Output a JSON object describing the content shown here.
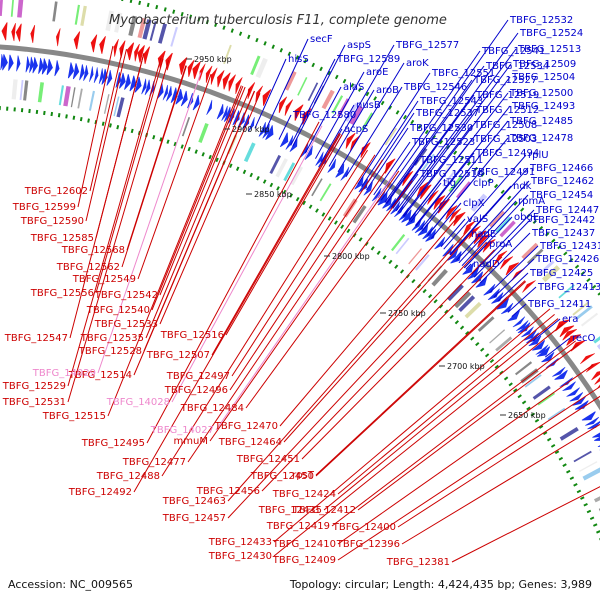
{
  "title": "Mycobacterium tuberculosis F11, complete genome",
  "footer": {
    "accession": "Accession: NC_009565",
    "summary": "Topology: circular; Length: 4,424,435 bp; Genes: 3,989"
  },
  "colors": {
    "forward_label": "#0000cc",
    "reverse_label": "#cc0000",
    "rna_label": "#ee88cc",
    "backbone": "#888888",
    "cds_forward": "#1a33ee",
    "cds_reverse": "#ee1111",
    "gc_ticks": "#118811"
  },
  "kbp_ticks": [
    {
      "label": "2950 kbp"
    },
    {
      "label": "2900 kbp"
    },
    {
      "label": "2850 kbp"
    },
    {
      "label": "2800 kbp"
    },
    {
      "label": "2750 kbp"
    },
    {
      "label": "2700 kbp"
    },
    {
      "label": "2650 kbp"
    }
  ],
  "forward_labels": [
    "secF",
    "aspS",
    "TBFG_12577",
    "hisS",
    "TBFG_12589",
    "aroK",
    "aroE",
    "TBFG_12551",
    "alaS",
    "aroB",
    "TBFG_12546",
    "TBFG_12543",
    "nusB",
    "TBFG_12580",
    "TBFG_12537",
    "acpS",
    "TBFG_12530",
    "TBFG_12523",
    "TBFG_12511",
    "TBFG_12510",
    "tig",
    "clpP",
    "clpX",
    "valS",
    "nadE",
    "nadD",
    "proA",
    "TBFG_12532",
    "TBFG_12524",
    "TBFG_12541",
    "TBFG_12513",
    "TBFG_12534",
    "TBFG_12509",
    "TBFG_12527",
    "TBFG_12504",
    "TBFG_12519",
    "TBFG_12500",
    "TBFG_12512",
    "TBFG_12493",
    "TBFG_12508",
    "TBFG_12485",
    "TBFG_12503",
    "TBFG_12478",
    "TBFG_12494",
    "rplU",
    "TBFG_12491",
    "TBFG_12466",
    "ndk",
    "TBFG_12462",
    "rpmA",
    "TBFG_12454",
    "obgE",
    "TBFG_12447",
    "TBFG_12442",
    "TBFG_12437",
    "TBFG_12431",
    "TBFG_12426",
    "TBFG_12425",
    "TBFG_12413",
    "TBFG_12411",
    "era",
    "recO"
  ],
  "reverse_labels": [
    "TBFG_12602",
    "TBFG_12599",
    "TBFG_12590",
    "TBFG_12585",
    "TBFG_12568",
    "TBFG_12562",
    "TBFG_12549",
    "TBFG_12556",
    "TBFG_12542",
    "TBFG_12540",
    "TBFG_12533",
    "TBFG_12547",
    "TBFG_12535",
    "TBFG_12516",
    "TBFG_12528",
    "TBFG_12507",
    "TBFG_12514",
    "TBFG_12529",
    "TBFG_12497",
    "TBFG_12496",
    "TBFG_12531",
    "TBFG_12515",
    "TBFG_12484",
    "TBFG_12470",
    "TBFG_12495",
    "mmuM",
    "TBFG_12464",
    "TBFG_12477",
    "TBFG_12451",
    "TBFG_12488",
    "TBFG_12450",
    "rpsT",
    "TBFG_12492",
    "TBFG_12456",
    "TBFG_12424",
    "TBFG_12463",
    "TBFG_12435",
    "TBFG_12412",
    "TBFG_12457",
    "TBFG_12419",
    "TBFG_12400",
    "TBFG_12433",
    "TBFG_12410",
    "TBFG_12396",
    "TBFG_12430",
    "TBFG_12409",
    "TBFG_12381"
  ],
  "rna_labels": [
    "TBFG_14029",
    "TBFG_14028",
    "TBFG_14027"
  ]
}
